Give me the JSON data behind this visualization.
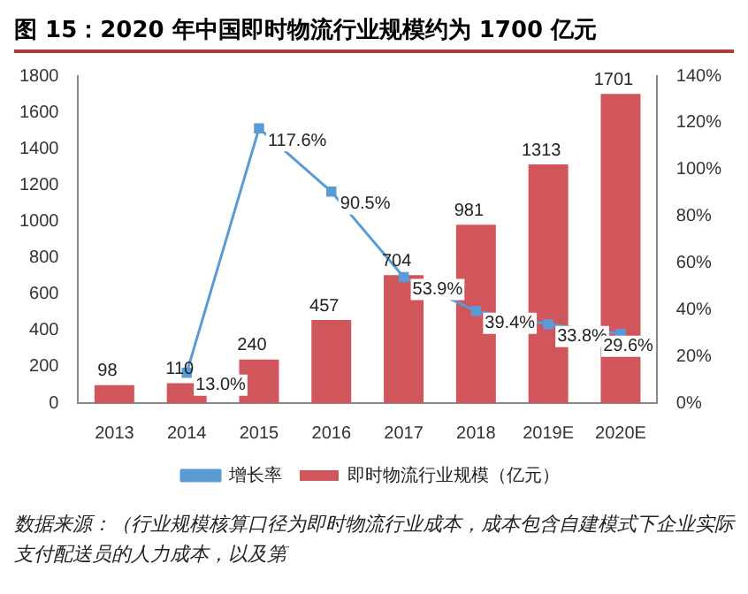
{
  "chart_data": {
    "type": "bar",
    "title": "图 15：2020 年中国即时物流行业规模约为 1700 亿元",
    "categories": [
      "2013",
      "2014",
      "2015",
      "2016",
      "2017",
      "2018",
      "2019E",
      "2020E"
    ],
    "series": [
      {
        "name": "即时物流行业规模（亿元）",
        "color": "#d0565c",
        "values": [
          98,
          110,
          240,
          457,
          704,
          981,
          1313,
          1701
        ],
        "value_labels": [
          "98",
          "110",
          "240",
          "457",
          "704",
          "981",
          "1313",
          "1701"
        ]
      },
      {
        "name": "增长率",
        "type": "line",
        "axis": "y2",
        "color": "#5b9bd5",
        "marker": "square",
        "values": [
          null,
          13.0,
          117.6,
          90.5,
          53.9,
          39.4,
          33.8,
          29.6
        ],
        "value_labels": [
          null,
          "13.0%",
          "117.6%",
          "90.5%",
          "53.9%",
          "39.4%",
          "33.8%",
          "29.6%"
        ]
      }
    ],
    "ylim": [
      0,
      1800
    ],
    "yticks": [
      0,
      200,
      400,
      600,
      800,
      1000,
      1200,
      1400,
      1600,
      1800
    ],
    "y2lim": [
      0,
      140
    ],
    "y2ticks": [
      {
        "value": 0,
        "label": "0%"
      },
      {
        "value": 20,
        "label": "20%"
      },
      {
        "value": 40,
        "label": "40%"
      },
      {
        "value": 60,
        "label": "60%"
      },
      {
        "value": 80,
        "label": "80%"
      },
      {
        "value": 100,
        "label": "100%"
      },
      {
        "value": 120,
        "label": "120%"
      },
      {
        "value": 140,
        "label": "140%"
      }
    ],
    "grid": false,
    "legend": "bottom",
    "annotations": [
      "数据来源：（行业规模核算口径为即时物流行业成本，成本包含自建模式下企业实际支付配送员的人力成本，以及第"
    ]
  }
}
